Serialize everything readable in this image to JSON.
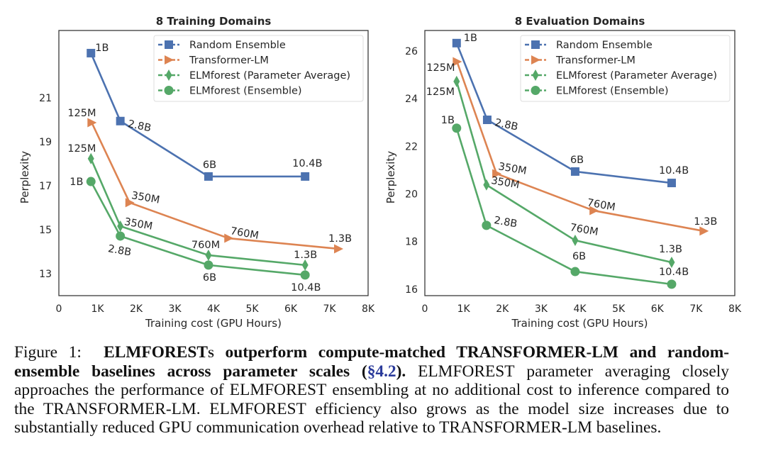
{
  "chart_data": [
    {
      "type": "line",
      "title": "8 Training Domains",
      "xlabel": "Training cost (GPU Hours)",
      "ylabel": "Perplexity",
      "xlim": [
        0,
        8000
      ],
      "ylim": [
        12.0,
        24.06
      ],
      "xticks": [
        0,
        1000,
        2000,
        3000,
        4000,
        5000,
        6000,
        7000,
        8000
      ],
      "xtick_labels": [
        "0",
        "1K",
        "2K",
        "3K",
        "4K",
        "5K",
        "6K",
        "7K",
        "8K"
      ],
      "yticks": [
        13,
        15,
        17,
        19,
        21
      ],
      "ytick_labels": [
        "13",
        "15",
        "17",
        "19",
        "21"
      ],
      "grid": false,
      "legend_position": "top-right",
      "series": [
        {
          "name": "Random Ensemble",
          "color": "#4c72b0",
          "marker": "square",
          "x": [
            830,
            1590,
            3870,
            6370
          ],
          "y": [
            23.03,
            19.94,
            17.42,
            17.42
          ],
          "labels": [
            "1B",
            "2.8B",
            "6B",
            "10.4B"
          ]
        },
        {
          "name": "Transformer-LM",
          "color": "#dd8452",
          "marker": "triangle-right",
          "x": [
            850,
            1830,
            4390,
            7230
          ],
          "y": [
            19.87,
            16.23,
            14.61,
            14.13
          ],
          "labels": [
            "125M",
            "350M",
            "760M",
            "1.3B"
          ]
        },
        {
          "name": "ELMforest (Parameter Average)",
          "color": "#55a868",
          "marker": "diamond",
          "x": [
            830,
            1590,
            3870,
            6370
          ],
          "y": [
            18.23,
            15.16,
            13.84,
            13.39
          ],
          "labels": [
            "125M",
            "350M",
            "760M",
            "1.3B"
          ]
        },
        {
          "name": "ELMforest (Ensemble)",
          "color": "#55a868",
          "marker": "circle",
          "x": [
            830,
            1590,
            3870,
            6370
          ],
          "y": [
            17.19,
            14.71,
            13.39,
            12.94
          ],
          "labels": [
            "1B",
            "2.8B",
            "6B",
            "10.4B"
          ]
        }
      ]
    },
    {
      "type": "line",
      "title": "8 Evaluation Domains",
      "xlabel": "Training cost (GPU Hours)",
      "ylabel": "Perplexity",
      "xlim": [
        0,
        8000
      ],
      "ylim": [
        15.73,
        26.86
      ],
      "xticks": [
        0,
        1000,
        2000,
        3000,
        4000,
        5000,
        6000,
        7000,
        8000
      ],
      "xtick_labels": [
        "0",
        "1K",
        "2K",
        "3K",
        "4K",
        "5K",
        "6K",
        "7K",
        "8K"
      ],
      "yticks": [
        16,
        18,
        20,
        22,
        24,
        26
      ],
      "ytick_labels": [
        "16",
        "18",
        "20",
        "22",
        "24",
        "26"
      ],
      "grid": false,
      "legend_position": "top-right",
      "series": [
        {
          "name": "Random Ensemble",
          "color": "#4c72b0",
          "marker": "square",
          "x": [
            820,
            1610,
            3880,
            6370
          ],
          "y": [
            26.33,
            23.11,
            20.94,
            20.46
          ],
          "labels": [
            "1B",
            "2.8B",
            "6B",
            "10.4B"
          ]
        },
        {
          "name": "Transformer-LM",
          "color": "#dd8452",
          "marker": "triangle-right",
          "x": [
            830,
            1850,
            4360,
            7200
          ],
          "y": [
            25.55,
            20.85,
            19.3,
            18.44
          ],
          "labels": [
            "125M",
            "350M",
            "760M",
            "1.3B"
          ]
        },
        {
          "name": "ELMforest (Parameter Average)",
          "color": "#55a868",
          "marker": "diamond",
          "x": [
            820,
            1590,
            3880,
            6370
          ],
          "y": [
            24.72,
            20.38,
            18.05,
            17.13
          ],
          "labels": [
            "125M",
            "350M",
            "760M",
            "1.3B"
          ]
        },
        {
          "name": "ELMforest (Ensemble)",
          "color": "#55a868",
          "marker": "circle",
          "x": [
            820,
            1590,
            3880,
            6370
          ],
          "y": [
            22.76,
            18.68,
            16.74,
            16.21
          ],
          "labels": [
            "1B",
            "2.8B",
            "6B",
            "10.4B"
          ]
        }
      ]
    }
  ],
  "caption": {
    "figure_label": "Figure 1:",
    "bold_parts": [
      "ELM",
      "FORESTs",
      " outperform compute-matched ",
      "T",
      "RANSFORMER",
      "-LM and random-ensemble baselines across parameter scales (",
      "§4.2",
      ")."
    ],
    "sentence_1_a": " ELM",
    "sentence_1_b": "FOREST",
    "sentence_1_c": " parameter averaging closely approaches the performance of ELM",
    "sentence_1_d": "FOREST",
    "sentence_1_e": " ensembling at no additional cost to inference compared to the T",
    "sentence_1_f": "RANSFORMER",
    "sentence_1_g": "-LM. ELM",
    "sentence_2_a": "FOREST",
    "sentence_2_b": " efficiency also grows as the model size increases due to substantially reduced GPU communication overhead relative to T",
    "sentence_2_c": "RANSFORMER",
    "sentence_2_d": "-LM baselines."
  }
}
